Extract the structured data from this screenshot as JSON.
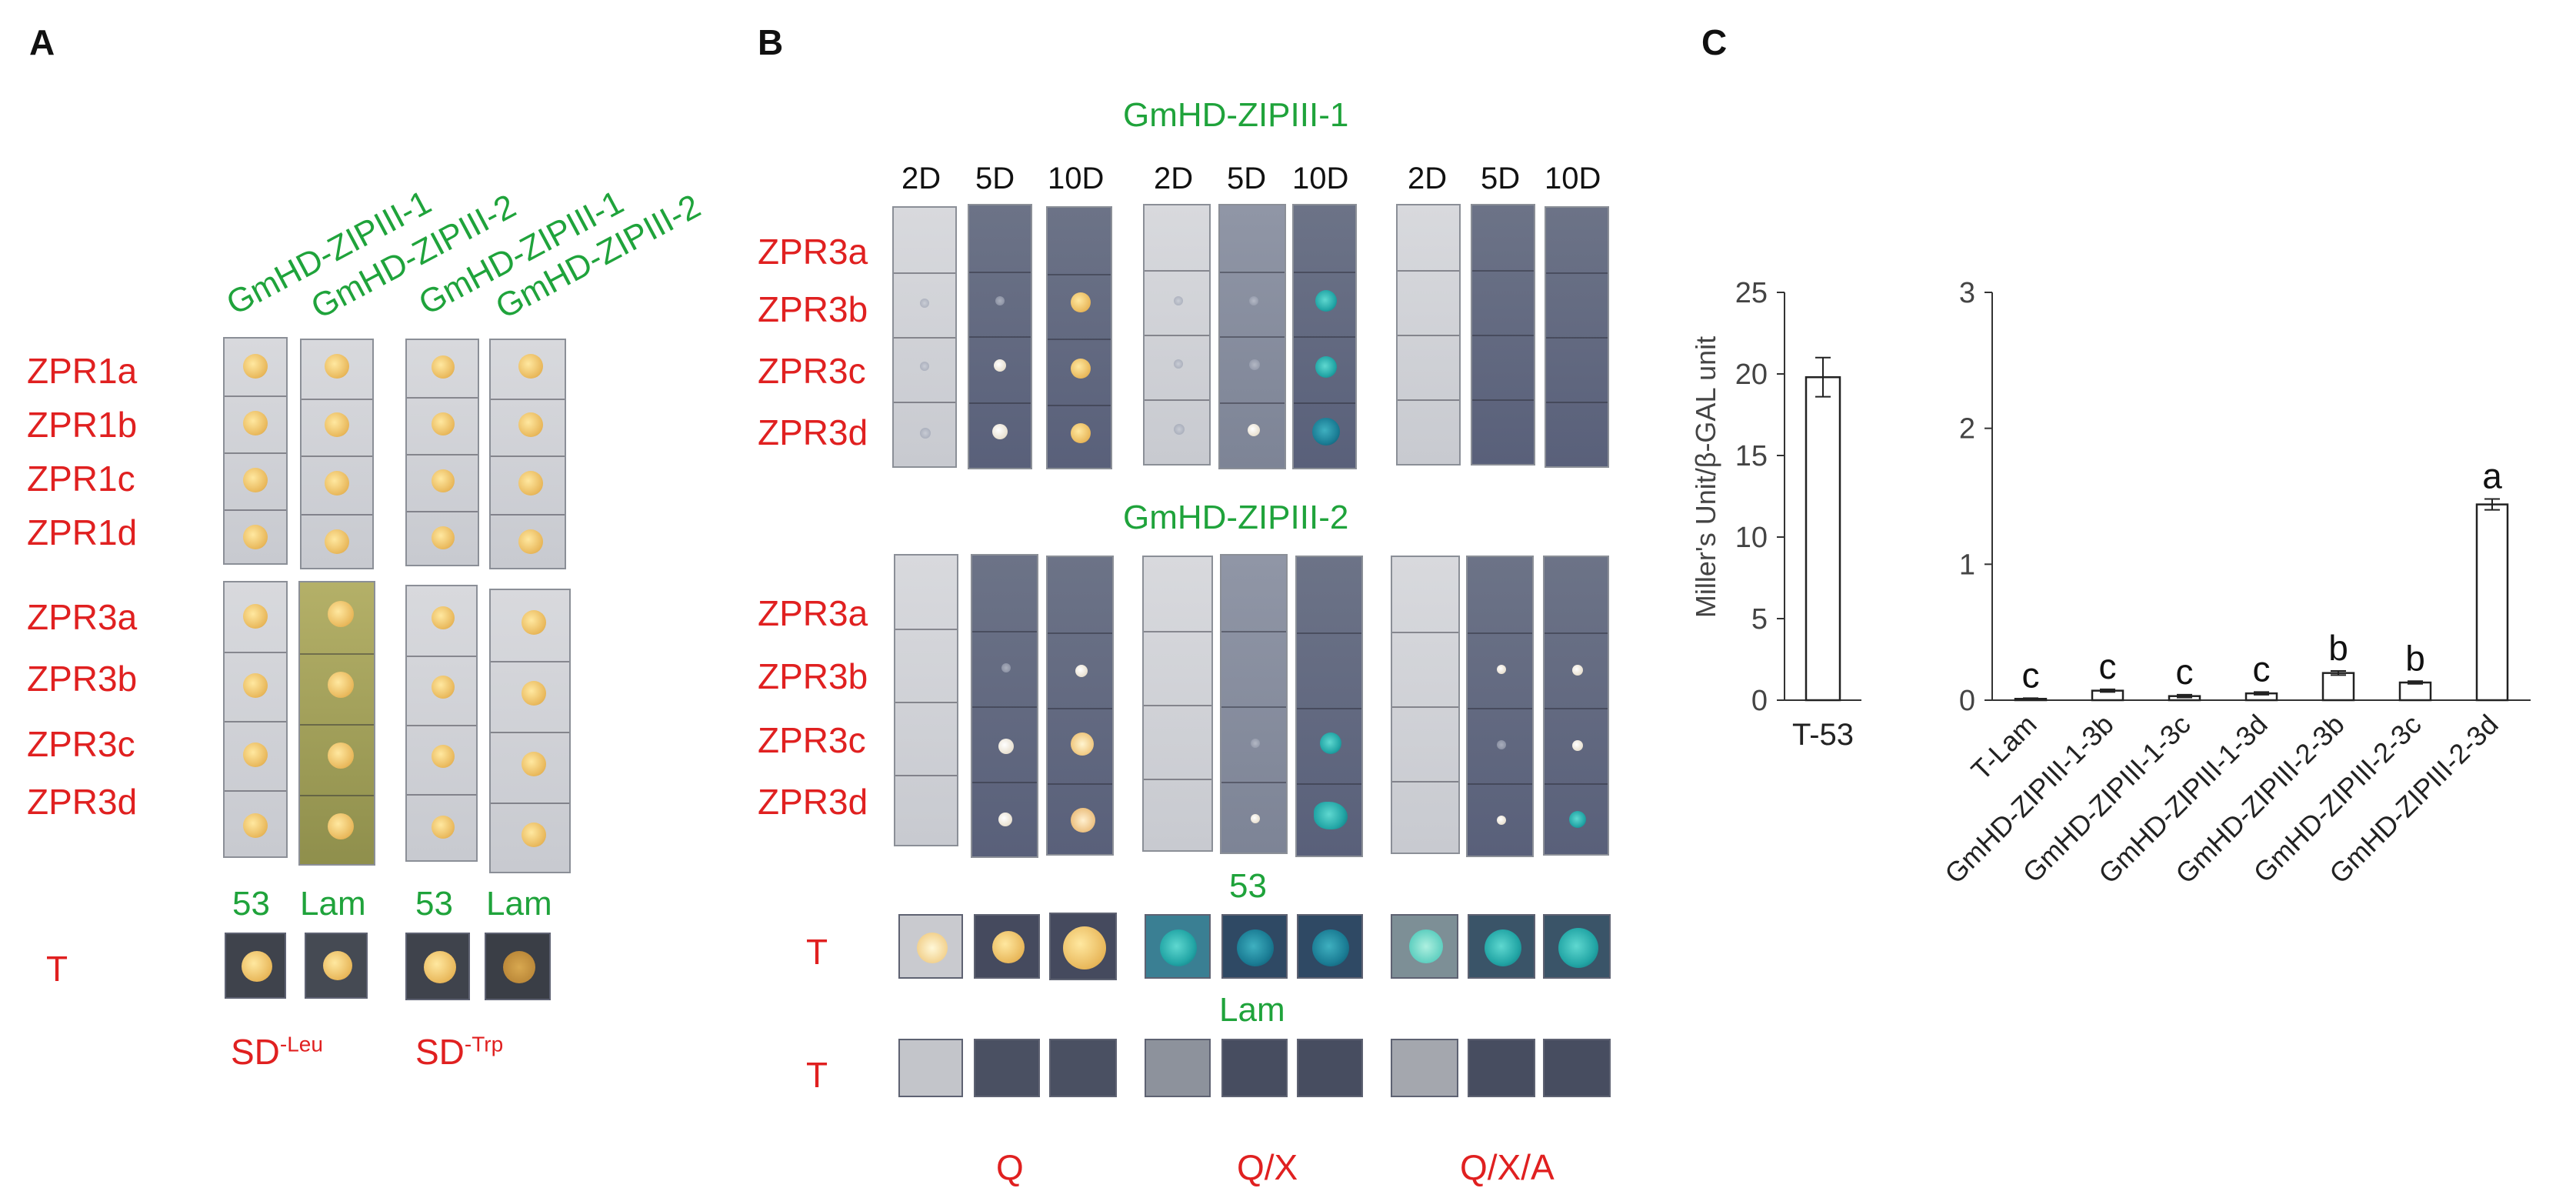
{
  "panels": {
    "a": "A",
    "b": "B",
    "c": "C"
  },
  "panel_a": {
    "columns": [
      "GmHD-ZIPIII-1",
      "GmHD-ZIPIII-2",
      "GmHD-ZIPIII-1",
      "GmHD-ZIPIII-2"
    ],
    "rows_top": [
      "ZPR1a",
      "ZPR1b",
      "ZPR1c",
      "ZPR1d"
    ],
    "rows_bottom": [
      "ZPR3a",
      "ZPR3b",
      "ZPR3c",
      "ZPR3d"
    ],
    "controls": [
      "53",
      "Lam",
      "53",
      "Lam"
    ],
    "t_label": "T",
    "media": [
      {
        "base": "SD",
        "sup": "-Leu"
      },
      {
        "base": "SD",
        "sup": "-Trp"
      }
    ]
  },
  "panel_b": {
    "title1": "GmHD-ZIPIII-1",
    "title2": "GmHD-ZIPIII-2",
    "days": [
      "2D",
      "5D",
      "10D",
      "2D",
      "5D",
      "10D",
      "2D",
      "5D",
      "10D"
    ],
    "rows": [
      "ZPR3a",
      "ZPR3b",
      "ZPR3c",
      "ZPR3d"
    ],
    "rows2": [
      "ZPR3a",
      "ZPR3b",
      "ZPR3c",
      "ZPR3d"
    ],
    "ctrl_53": "53",
    "ctrl_lam": "Lam",
    "t_label_1": "T",
    "t_label_2": "T",
    "media": [
      "Q",
      "Q/X",
      "Q/X/A"
    ]
  },
  "chart_data": [
    {
      "type": "bar",
      "ylabel": "Miller's Unit/β-GAL unit",
      "ylim": [
        0,
        25
      ],
      "yticks": [
        0,
        5,
        10,
        15,
        20,
        25
      ],
      "categories": [
        "T-53"
      ],
      "values": [
        19.8
      ],
      "errors": [
        1.2
      ]
    },
    {
      "type": "bar",
      "ylim": [
        0,
        3
      ],
      "yticks": [
        0,
        1,
        2,
        3
      ],
      "categories": [
        "T-Lam",
        "GmHD-ZIPIII-1-3b",
        "GmHD-ZIPIII-1-3c",
        "GmHD-ZIPIII-1-3d",
        "GmHD-ZIPIII-2-3b",
        "GmHD-ZIPIII-2-3c",
        "GmHD-ZIPIII-2-3d"
      ],
      "values": [
        0.01,
        0.07,
        0.03,
        0.05,
        0.2,
        0.13,
        1.44
      ],
      "errors": [
        0.005,
        0.01,
        0.01,
        0.01,
        0.015,
        0.01,
        0.04
      ],
      "letters": [
        "c",
        "c",
        "c",
        "c",
        "b",
        "b",
        "a"
      ]
    }
  ]
}
